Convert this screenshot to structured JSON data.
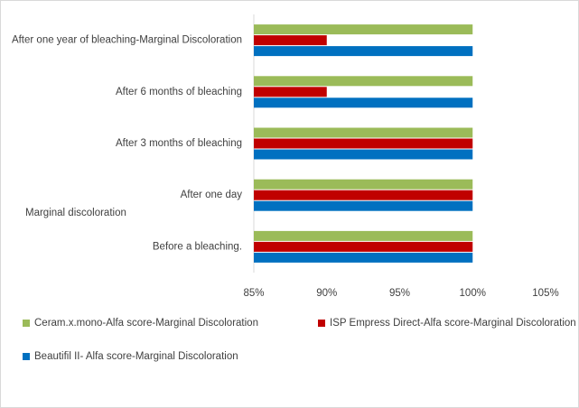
{
  "chart_data": {
    "type": "hbar",
    "annotation": "Marginal discoloration",
    "categories": [
      "After one year of bleaching-Marginal Discoloration",
      "After 6 months of bleaching",
      "After 3 months of bleaching",
      "After one day",
      "Before a bleaching."
    ],
    "series": [
      {
        "name": "Ceram.x.mono-Alfa score-Marginal Discoloration",
        "color": "#9bbb59",
        "values": [
          100,
          100,
          100,
          100,
          100
        ]
      },
      {
        "name": "ISP Empress Direct-Alfa score-Marginal Discoloration",
        "color": "#c00000",
        "values": [
          90,
          90,
          100,
          100,
          100
        ]
      },
      {
        "name": "Beautifil II- Alfa score-Marginal Discoloration",
        "color": "#0070c0",
        "values": [
          100,
          100,
          100,
          100,
          100
        ]
      }
    ],
    "xlim": [
      85,
      105
    ],
    "xticks": [
      {
        "value": 85,
        "label": "85%"
      },
      {
        "value": 90,
        "label": "90%"
      },
      {
        "value": 95,
        "label": "95%"
      },
      {
        "value": 100,
        "label": "100%"
      },
      {
        "value": 105,
        "label": "105%"
      }
    ],
    "grid": false,
    "legend": "bottom"
  }
}
